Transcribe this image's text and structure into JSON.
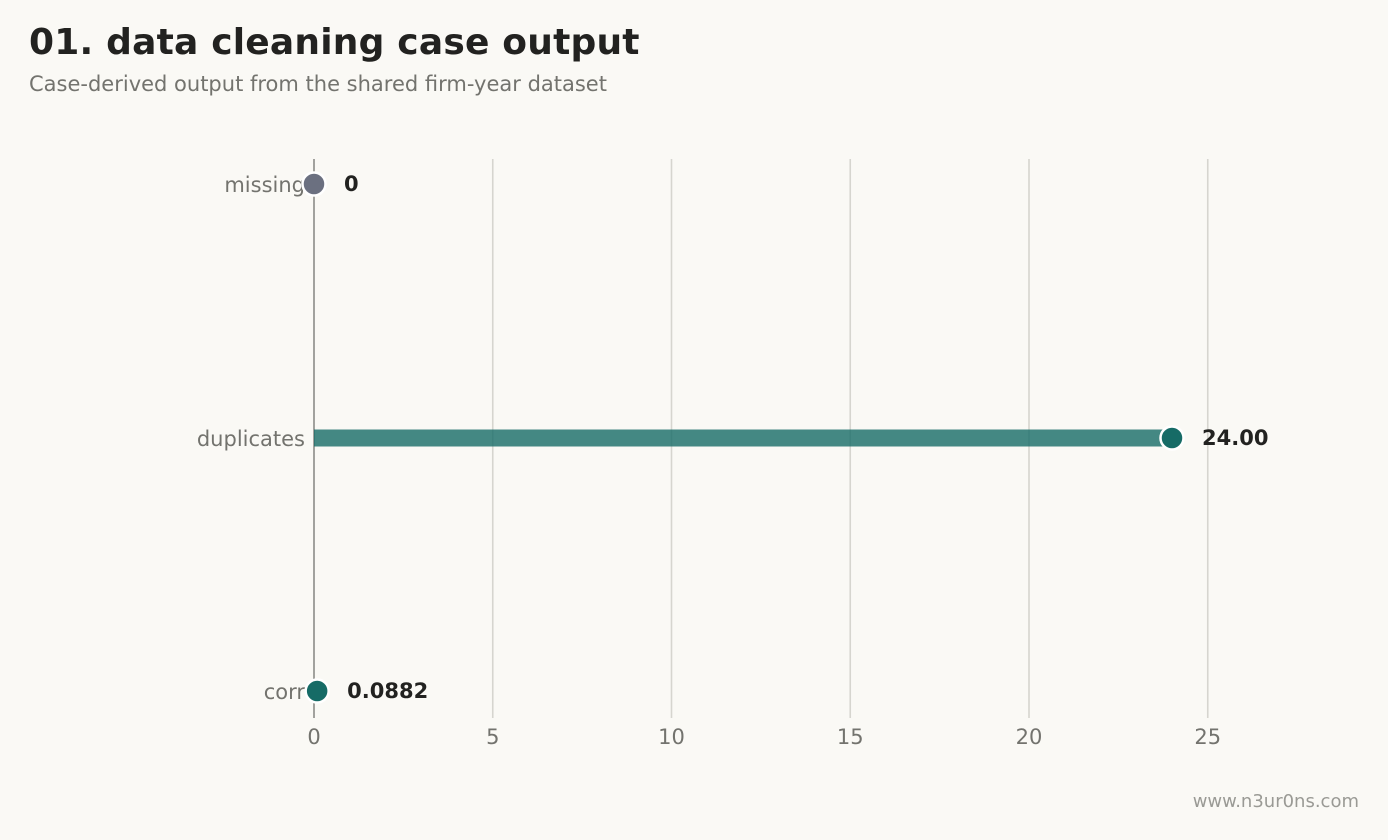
{
  "chart_data": {
    "type": "lollipop",
    "title": "01. data cleaning case output",
    "subtitle": "Case-derived output from the shared firm-year dataset",
    "categories": [
      "missing",
      "duplicates",
      "corr"
    ],
    "values": [
      0,
      24.0,
      0.0882
    ],
    "value_labels": [
      "0",
      "24.00",
      "0.0882"
    ],
    "colors": [
      "#6b7080",
      "#166b66",
      "#166b66"
    ],
    "xlim": [
      0,
      30
    ],
    "xticks": [
      0,
      5,
      10,
      15,
      20,
      25
    ],
    "grid": true,
    "xlabel": "",
    "ylabel": ""
  },
  "footer": "www.n3ur0ns.com"
}
